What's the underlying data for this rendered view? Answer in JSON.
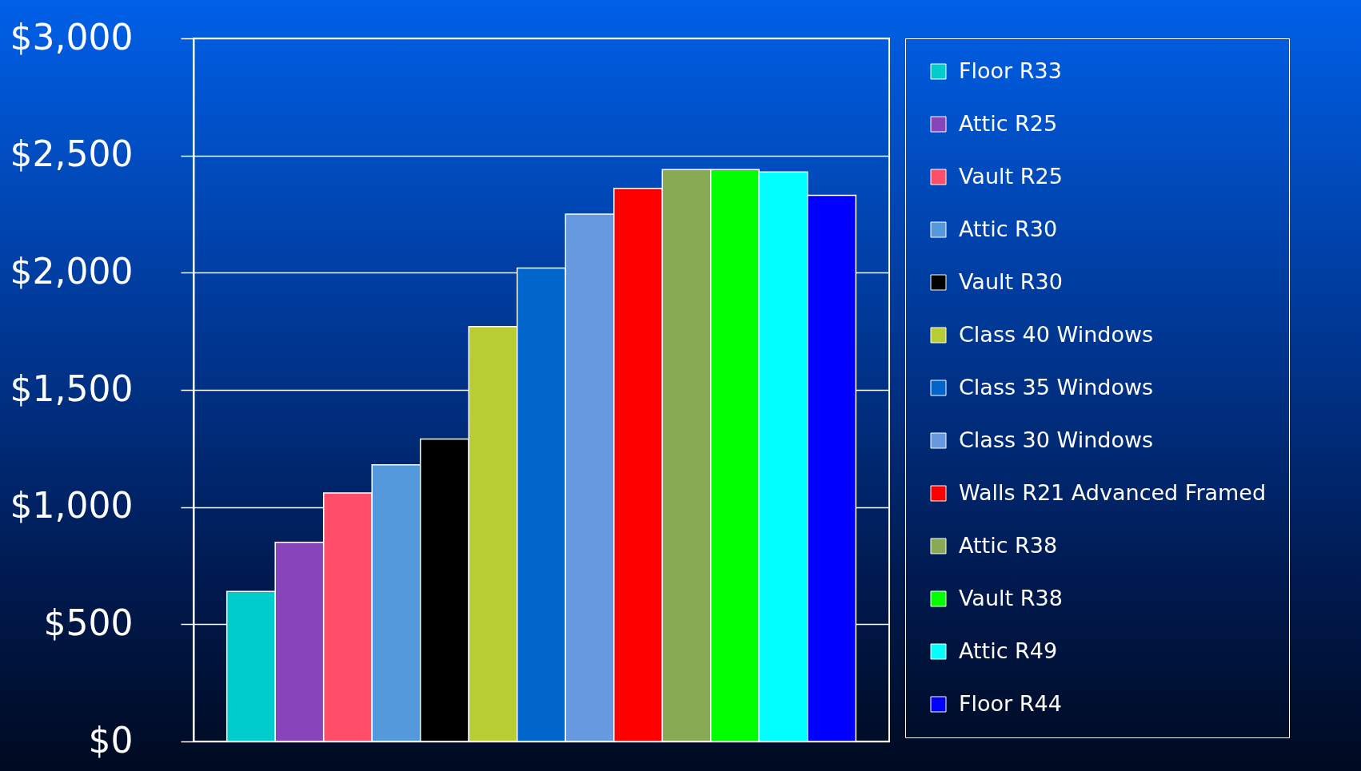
{
  "chart_data": {
    "type": "bar",
    "categories": [
      null
    ],
    "series": [
      {
        "name": "Floor R33",
        "color": "#00cccc",
        "values": [
          640
        ]
      },
      {
        "name": "Attic R25",
        "color": "#8844bb",
        "values": [
          850
        ]
      },
      {
        "name": "Vault R25",
        "color": "#ff4d6a",
        "values": [
          1060
        ]
      },
      {
        "name": "Attic R30",
        "color": "#5599dd",
        "values": [
          1180
        ]
      },
      {
        "name": "Vault R30",
        "color": "#000000",
        "values": [
          1290
        ]
      },
      {
        "name": "Class 40 Windows",
        "color": "#b8cc33",
        "values": [
          1770
        ]
      },
      {
        "name": "Class 35 Windows",
        "color": "#0066cc",
        "values": [
          2020
        ]
      },
      {
        "name": "Class 30 Windows",
        "color": "#6699dd",
        "values": [
          2250
        ]
      },
      {
        "name": "Walls R21 Advanced Framed",
        "color": "#ff0000",
        "values": [
          2360
        ]
      },
      {
        "name": "Attic R38",
        "color": "#88aa55",
        "values": [
          2440
        ]
      },
      {
        "name": "Vault R38",
        "color": "#00ff00",
        "values": [
          2440
        ]
      },
      {
        "name": "Attic R49",
        "color": "#00ffff",
        "values": [
          2430
        ]
      },
      {
        "name": "Floor R44",
        "color": "#0000ff",
        "values": [
          2330
        ]
      }
    ],
    "ylim": [
      0,
      3000
    ],
    "yticks": [
      {
        "value": 0,
        "label": "$0"
      },
      {
        "value": 500,
        "label": "$500"
      },
      {
        "value": 1000,
        "label": "$1,000"
      },
      {
        "value": 1500,
        "label": "$1,500"
      },
      {
        "value": 2000,
        "label": "$2,000"
      },
      {
        "value": 2500,
        "label": "$2,500"
      },
      {
        "value": 3000,
        "label": "$3,000"
      }
    ],
    "grid": "y",
    "legend": "right"
  }
}
